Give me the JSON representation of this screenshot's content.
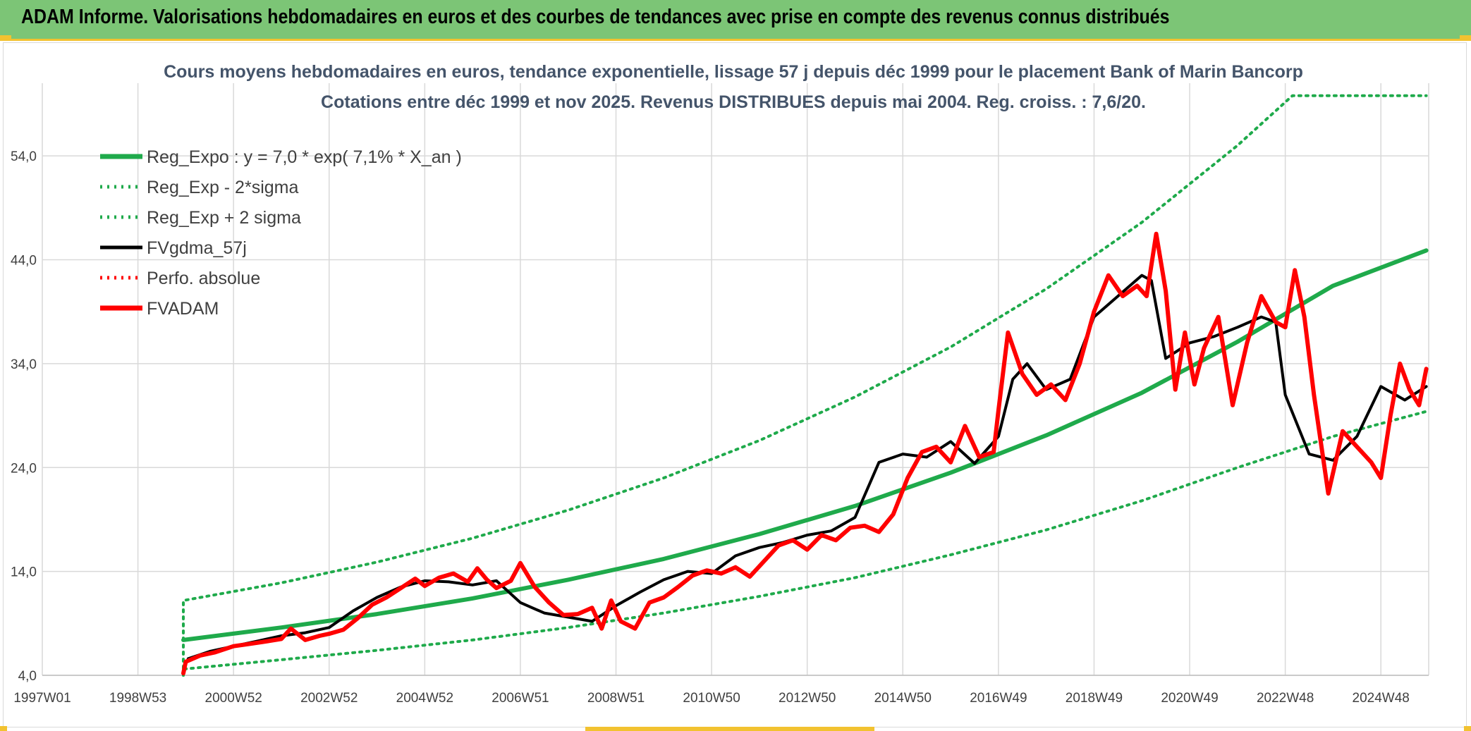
{
  "header": {
    "title": "ADAM Informe. Valorisations hebdomadaires en euros et des courbes de tendances avec prise en compte des revenus connus distribués"
  },
  "colors": {
    "header_bg": "#7cc576",
    "accent": "#f2c230",
    "green": "#1faa4b",
    "black": "#000000",
    "red": "#ff0000",
    "grid": "#d9d9d9"
  },
  "chart_data": {
    "type": "line",
    "title_lines": [
      "Cours moyens hebdomadaires en euros, tendance exponentielle, lissage 57 j depuis déc 1999 pour le placement Bank of Marin Bancorp",
      "Cotations entre déc 1999 et nov 2025. Revenus DISTRIBUES depuis mai 2004. Reg. croiss. : 7,6/20."
    ],
    "xlabel": "",
    "ylabel": "",
    "x_range": [
      1997.0,
      2026.0
    ],
    "ylim": [
      4.0,
      61.0
    ],
    "y_ticks": [
      {
        "value": 4,
        "label": "4,0"
      },
      {
        "value": 14,
        "label": "14,0"
      },
      {
        "value": 24,
        "label": "24,0"
      },
      {
        "value": 34,
        "label": "34,0"
      },
      {
        "value": 44,
        "label": "44,0"
      },
      {
        "value": 54,
        "label": "54,0"
      }
    ],
    "x_ticks": [
      {
        "value": 1997.0,
        "label": "1997W01"
      },
      {
        "value": 1999.0,
        "label": "1998W53"
      },
      {
        "value": 2001.0,
        "label": "2000W52"
      },
      {
        "value": 2003.0,
        "label": "2002W52"
      },
      {
        "value": 2005.0,
        "label": "2004W52"
      },
      {
        "value": 2007.0,
        "label": "2006W51"
      },
      {
        "value": 2009.0,
        "label": "2008W51"
      },
      {
        "value": 2011.0,
        "label": "2010W50"
      },
      {
        "value": 2013.0,
        "label": "2012W50"
      },
      {
        "value": 2015.0,
        "label": "2014W50"
      },
      {
        "value": 2017.0,
        "label": "2016W49"
      },
      {
        "value": 2019.0,
        "label": "2018W49"
      },
      {
        "value": 2021.0,
        "label": "2020W49"
      },
      {
        "value": 2023.0,
        "label": "2022W48"
      },
      {
        "value": 2025.0,
        "label": "2024W48"
      }
    ],
    "grid": true,
    "legend_position": "top-left",
    "series": [
      {
        "name": "Reg_Expo : y = 7,0 * exp( 7,1% *  X_an )",
        "style": "solid-thick",
        "color": "#1faa4b",
        "x": [
          1999.95,
          2002,
          2004,
          2006,
          2008,
          2010,
          2012,
          2014,
          2016,
          2018,
          2020,
          2022,
          2024,
          2025.95
        ],
        "y": [
          7.4,
          8.6,
          9.9,
          11.4,
          13.2,
          15.2,
          17.6,
          20.3,
          23.5,
          27.1,
          31.2,
          36.1,
          41.5,
          44.9
        ]
      },
      {
        "name": "Reg_Exp - 2*sigma",
        "style": "dotted",
        "color": "#1faa4b",
        "x": [
          1999.95,
          1999.95,
          2002,
          2004,
          2006,
          2008,
          2010,
          2012,
          2014,
          2016,
          2018,
          2020,
          2022,
          2024,
          2025.95
        ],
        "y": [
          4.0,
          4.6,
          5.5,
          6.4,
          7.4,
          8.6,
          10.0,
          11.6,
          13.4,
          15.6,
          18.0,
          20.8,
          24.0,
          27.0,
          29.4
        ]
      },
      {
        "name": "Reg_Exp + 2 sigma",
        "style": "dotted",
        "color": "#1faa4b",
        "x": [
          1999.95,
          1999.95,
          2002,
          2004,
          2006,
          2008,
          2010,
          2012,
          2014,
          2016,
          2018,
          2020,
          2022,
          2023.15,
          2024,
          2025.95
        ],
        "y": [
          4.0,
          11.2,
          12.9,
          14.9,
          17.2,
          19.9,
          23.0,
          26.6,
          30.8,
          35.6,
          41.2,
          47.6,
          55.0,
          59.8,
          59.8,
          59.8
        ]
      },
      {
        "name": "FVgdma_57j",
        "style": "solid",
        "color": "#000000",
        "x": [
          2000.05,
          2000.5,
          2001,
          2001.5,
          2002,
          2002.5,
          2003,
          2003.5,
          2004,
          2004.5,
          2005,
          2005.5,
          2006,
          2006.5,
          2007,
          2007.5,
          2008,
          2008.5,
          2009,
          2009.5,
          2010,
          2010.5,
          2011,
          2011.5,
          2012,
          2012.5,
          2013,
          2013.5,
          2014,
          2014.5,
          2015,
          2015.5,
          2016,
          2016.5,
          2017,
          2017.3,
          2017.6,
          2018,
          2018.5,
          2019,
          2019.5,
          2020,
          2020.2,
          2020.5,
          2021,
          2021.5,
          2022,
          2022.5,
          2022.8,
          2023,
          2023.5,
          2024,
          2024.5,
          2025,
          2025.5,
          2025.95
        ],
        "y": [
          5.6,
          6.3,
          6.8,
          7.3,
          7.8,
          8.1,
          8.6,
          10.2,
          11.5,
          12.5,
          13.1,
          13.0,
          12.7,
          13.1,
          11.0,
          10.0,
          9.6,
          9.2,
          10.7,
          12.0,
          13.2,
          14.0,
          13.8,
          15.5,
          16.3,
          16.8,
          17.5,
          17.9,
          19.2,
          24.5,
          25.3,
          25.0,
          26.5,
          24.4,
          27.0,
          32.5,
          34.0,
          31.5,
          32.5,
          38.5,
          40.5,
          42.5,
          42.0,
          34.5,
          36.0,
          36.6,
          37.5,
          38.5,
          38.0,
          31.0,
          25.3,
          24.7,
          27.0,
          31.8,
          30.5,
          31.8
        ]
      },
      {
        "name": "Perfo. absolue",
        "style": "dotted",
        "color": "#ff0000",
        "x": [],
        "y": []
      },
      {
        "name": "FVADAM",
        "style": "solid-thick",
        "color": "#ff0000",
        "x": [
          1999.95,
          2000.0,
          2000.3,
          2000.6,
          2001,
          2001.3,
          2001.6,
          2002,
          2002.2,
          2002.5,
          2002.8,
          2003,
          2003.3,
          2003.6,
          2003.9,
          2004.2,
          2004.5,
          2004.8,
          2005,
          2005.3,
          2005.6,
          2005.9,
          2006.1,
          2006.3,
          2006.5,
          2006.8,
          2007,
          2007.3,
          2007.6,
          2007.9,
          2008.2,
          2008.5,
          2008.7,
          2008.9,
          2009.1,
          2009.4,
          2009.7,
          2010,
          2010.3,
          2010.6,
          2010.9,
          2011.2,
          2011.5,
          2011.8,
          2012.1,
          2012.4,
          2012.7,
          2013,
          2013.3,
          2013.6,
          2013.9,
          2014.2,
          2014.5,
          2014.8,
          2015.1,
          2015.4,
          2015.7,
          2016,
          2016.3,
          2016.6,
          2016.9,
          2017.0,
          2017.2,
          2017.5,
          2017.8,
          2018.1,
          2018.4,
          2018.7,
          2019.0,
          2019.3,
          2019.6,
          2019.9,
          2020.1,
          2020.3,
          2020.5,
          2020.7,
          2020.9,
          2021.1,
          2021.3,
          2021.6,
          2021.9,
          2022.2,
          2022.5,
          2022.8,
          2023.0,
          2023.2,
          2023.4,
          2023.6,
          2023.9,
          2024.2,
          2024.5,
          2024.8,
          2025.0,
          2025.2,
          2025.4,
          2025.6,
          2025.8,
          2025.95
        ],
        "y": [
          4.2,
          5.3,
          5.9,
          6.2,
          6.8,
          7.0,
          7.2,
          7.5,
          8.5,
          7.4,
          7.8,
          8.0,
          8.4,
          9.5,
          10.8,
          11.5,
          12.4,
          13.3,
          12.6,
          13.4,
          13.8,
          13.0,
          14.3,
          13.2,
          12.4,
          13.1,
          14.8,
          12.5,
          11.0,
          9.8,
          9.9,
          10.5,
          8.5,
          11.2,
          9.2,
          8.5,
          11.0,
          11.5,
          12.5,
          13.6,
          14.1,
          13.8,
          14.4,
          13.5,
          15.0,
          16.5,
          17.0,
          16.1,
          17.5,
          17.0,
          18.2,
          18.4,
          17.8,
          19.5,
          23.0,
          25.5,
          26.0,
          24.5,
          28.0,
          25.0,
          25.5,
          29.5,
          37.0,
          33.0,
          31.0,
          32.0,
          30.5,
          34.0,
          39.0,
          42.5,
          40.5,
          41.5,
          40.5,
          46.5,
          41.0,
          31.5,
          37.0,
          32.0,
          35.5,
          38.5,
          30.0,
          36.0,
          40.5,
          38.0,
          37.5,
          43.0,
          38.5,
          31.0,
          21.5,
          27.5,
          26.0,
          24.5,
          23.0,
          29.0,
          34.0,
          31.5,
          30.0,
          33.5
        ]
      }
    ]
  }
}
